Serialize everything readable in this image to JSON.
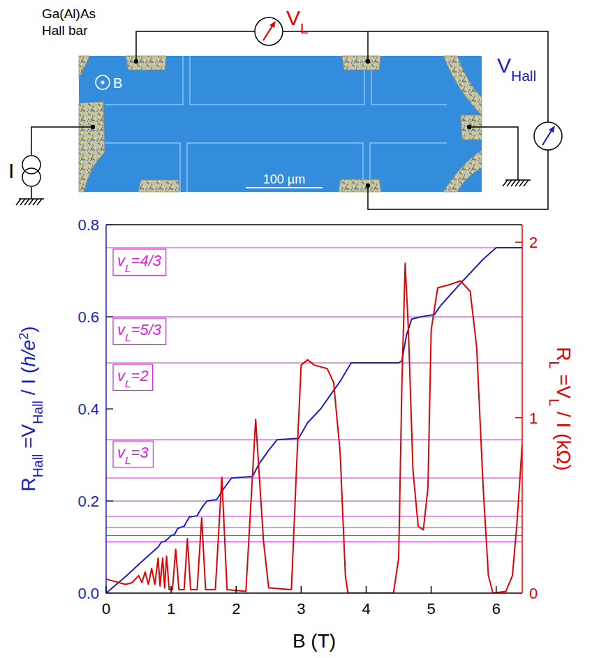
{
  "schematic": {
    "sample_label": [
      "Ga(Al)As",
      "Hall bar"
    ],
    "field_label": "B",
    "current_label": "I",
    "v_longitudinal": [
      {
        "text": "V"
      },
      {
        "text": "L",
        "sub": true
      }
    ],
    "v_hall": [
      {
        "text": "V"
      },
      {
        "text": "Hall",
        "sub": true
      }
    ],
    "scale_bar": "100 µm"
  },
  "chart_data": {
    "type": "line",
    "x_label": "B (T)",
    "y_label": [
      {
        "text": "R"
      },
      {
        "text": "Hall",
        "sub": true
      },
      {
        "text": " =V"
      },
      {
        "text": "Hall",
        "sub": true
      },
      {
        "text": " / I ("
      },
      {
        "text": "h/e",
        "italic": true
      },
      {
        "text": "2",
        "sup": true
      },
      {
        "text": ")"
      }
    ],
    "y2_label": [
      {
        "text": "R"
      },
      {
        "text": "L",
        "sub": true
      },
      {
        "text": " =V"
      },
      {
        "text": "L",
        "sub": true
      },
      {
        "text": " / I (kΩ)"
      }
    ],
    "xlim": [
      0,
      6.4
    ],
    "xticks": [
      0,
      1,
      2,
      3,
      4,
      5,
      6
    ],
    "ylim": [
      0,
      0.8
    ],
    "yticks": [
      {
        "value": 0,
        "label": "0.0"
      },
      {
        "value": 0.2,
        "label": "0.2"
      },
      {
        "value": 0.4,
        "label": "0.4"
      },
      {
        "value": 0.6,
        "label": "0.6"
      },
      {
        "value": 0.8,
        "label": "0.8"
      }
    ],
    "y2lim": [
      0,
      2.1
    ],
    "y2ticks": [
      0,
      1,
      2
    ],
    "series": [
      {
        "color": "#1e1ec8",
        "x": [
          0,
          0.3,
          0.6,
          0.8,
          0.85,
          0.9,
          0.95,
          1.0,
          1.05,
          1.1,
          1.15,
          1.2,
          1.28,
          1.4,
          1.47,
          1.55,
          1.7,
          1.8,
          1.93,
          2.25,
          2.35,
          2.5,
          2.63,
          2.96,
          3.1,
          3.3,
          3.45,
          3.6,
          3.77,
          4.5,
          4.55,
          4.62,
          4.7,
          4.85,
          5.05,
          5.15,
          5.5,
          5.8,
          6.0,
          6.4
        ],
        "values": [
          0,
          0.036,
          0.075,
          0.1,
          0.111,
          0.112,
          0.118,
          0.125,
          0.127,
          0.14,
          0.143,
          0.145,
          0.165,
          0.168,
          0.185,
          0.2,
          0.203,
          0.225,
          0.25,
          0.253,
          0.28,
          0.31,
          0.333,
          0.336,
          0.37,
          0.4,
          0.43,
          0.46,
          0.5,
          0.5,
          0.505,
          0.56,
          0.595,
          0.6,
          0.605,
          0.625,
          0.68,
          0.725,
          0.75,
          0.75
        ]
      },
      {
        "color": "#e60000",
        "axis": "y2",
        "x": [
          0,
          0.1,
          0.2,
          0.3,
          0.4,
          0.5,
          0.55,
          0.6,
          0.65,
          0.7,
          0.75,
          0.8,
          0.83,
          0.87,
          0.9,
          0.93,
          0.97,
          1.02,
          1.07,
          1.12,
          1.2,
          1.25,
          1.3,
          1.4,
          1.47,
          1.53,
          1.68,
          1.78,
          1.86,
          2.15,
          2.3,
          2.42,
          2.5,
          2.85,
          2.95,
          3.0,
          3.1,
          3.2,
          3.4,
          3.5,
          3.6,
          3.68,
          3.72,
          4.42,
          4.5,
          4.55,
          4.6,
          4.65,
          4.72,
          4.8,
          4.88,
          4.95,
          5.0,
          5.1,
          5.3,
          5.45,
          5.6,
          5.7,
          5.8,
          5.88,
          5.95,
          6.15,
          6.25,
          6.32,
          6.4
        ],
        "values": [
          0.08,
          0.07,
          0.06,
          0.05,
          0.06,
          0.1,
          0.06,
          0.12,
          0.05,
          0.14,
          0.05,
          0.2,
          0.04,
          0.2,
          0.03,
          0.21,
          0.02,
          0.02,
          0.25,
          0.02,
          0.02,
          0.31,
          0.02,
          0.02,
          0.43,
          0.02,
          0.02,
          0.66,
          0.02,
          0.01,
          0.99,
          0.3,
          0.03,
          0.02,
          0.9,
          1.3,
          1.33,
          1.3,
          1.28,
          1.2,
          0.8,
          0.1,
          0,
          0,
          0.2,
          1.2,
          1.88,
          1.5,
          0.7,
          0.38,
          0.36,
          0.6,
          1.5,
          1.74,
          1.76,
          1.78,
          1.72,
          1.4,
          0.6,
          0.1,
          0,
          0.01,
          0.1,
          0.4,
          0.85
        ]
      }
    ],
    "plateau_lines": {
      "color": "#e020e0",
      "values": [
        0.75,
        0.6,
        0.5,
        0.3333,
        0.25,
        0.2,
        0.1667,
        0.1429,
        0.125,
        0.1111
      ]
    },
    "annotations": [
      {
        "value": 0.75,
        "text": [
          {
            "text": "v"
          },
          {
            "text": "L",
            "sub": true
          },
          {
            "text": "=4/3"
          }
        ]
      },
      {
        "value": 0.6,
        "text": [
          {
            "text": "v"
          },
          {
            "text": "L",
            "sub": true
          },
          {
            "text": "=5/3"
          }
        ]
      },
      {
        "value": 0.5,
        "text": [
          {
            "text": "v"
          },
          {
            "text": "L",
            "sub": true
          },
          {
            "text": "=2"
          }
        ]
      },
      {
        "value": 0.3333,
        "text": [
          {
            "text": "v"
          },
          {
            "text": "L",
            "sub": true
          },
          {
            "text": "=3"
          }
        ]
      }
    ]
  }
}
